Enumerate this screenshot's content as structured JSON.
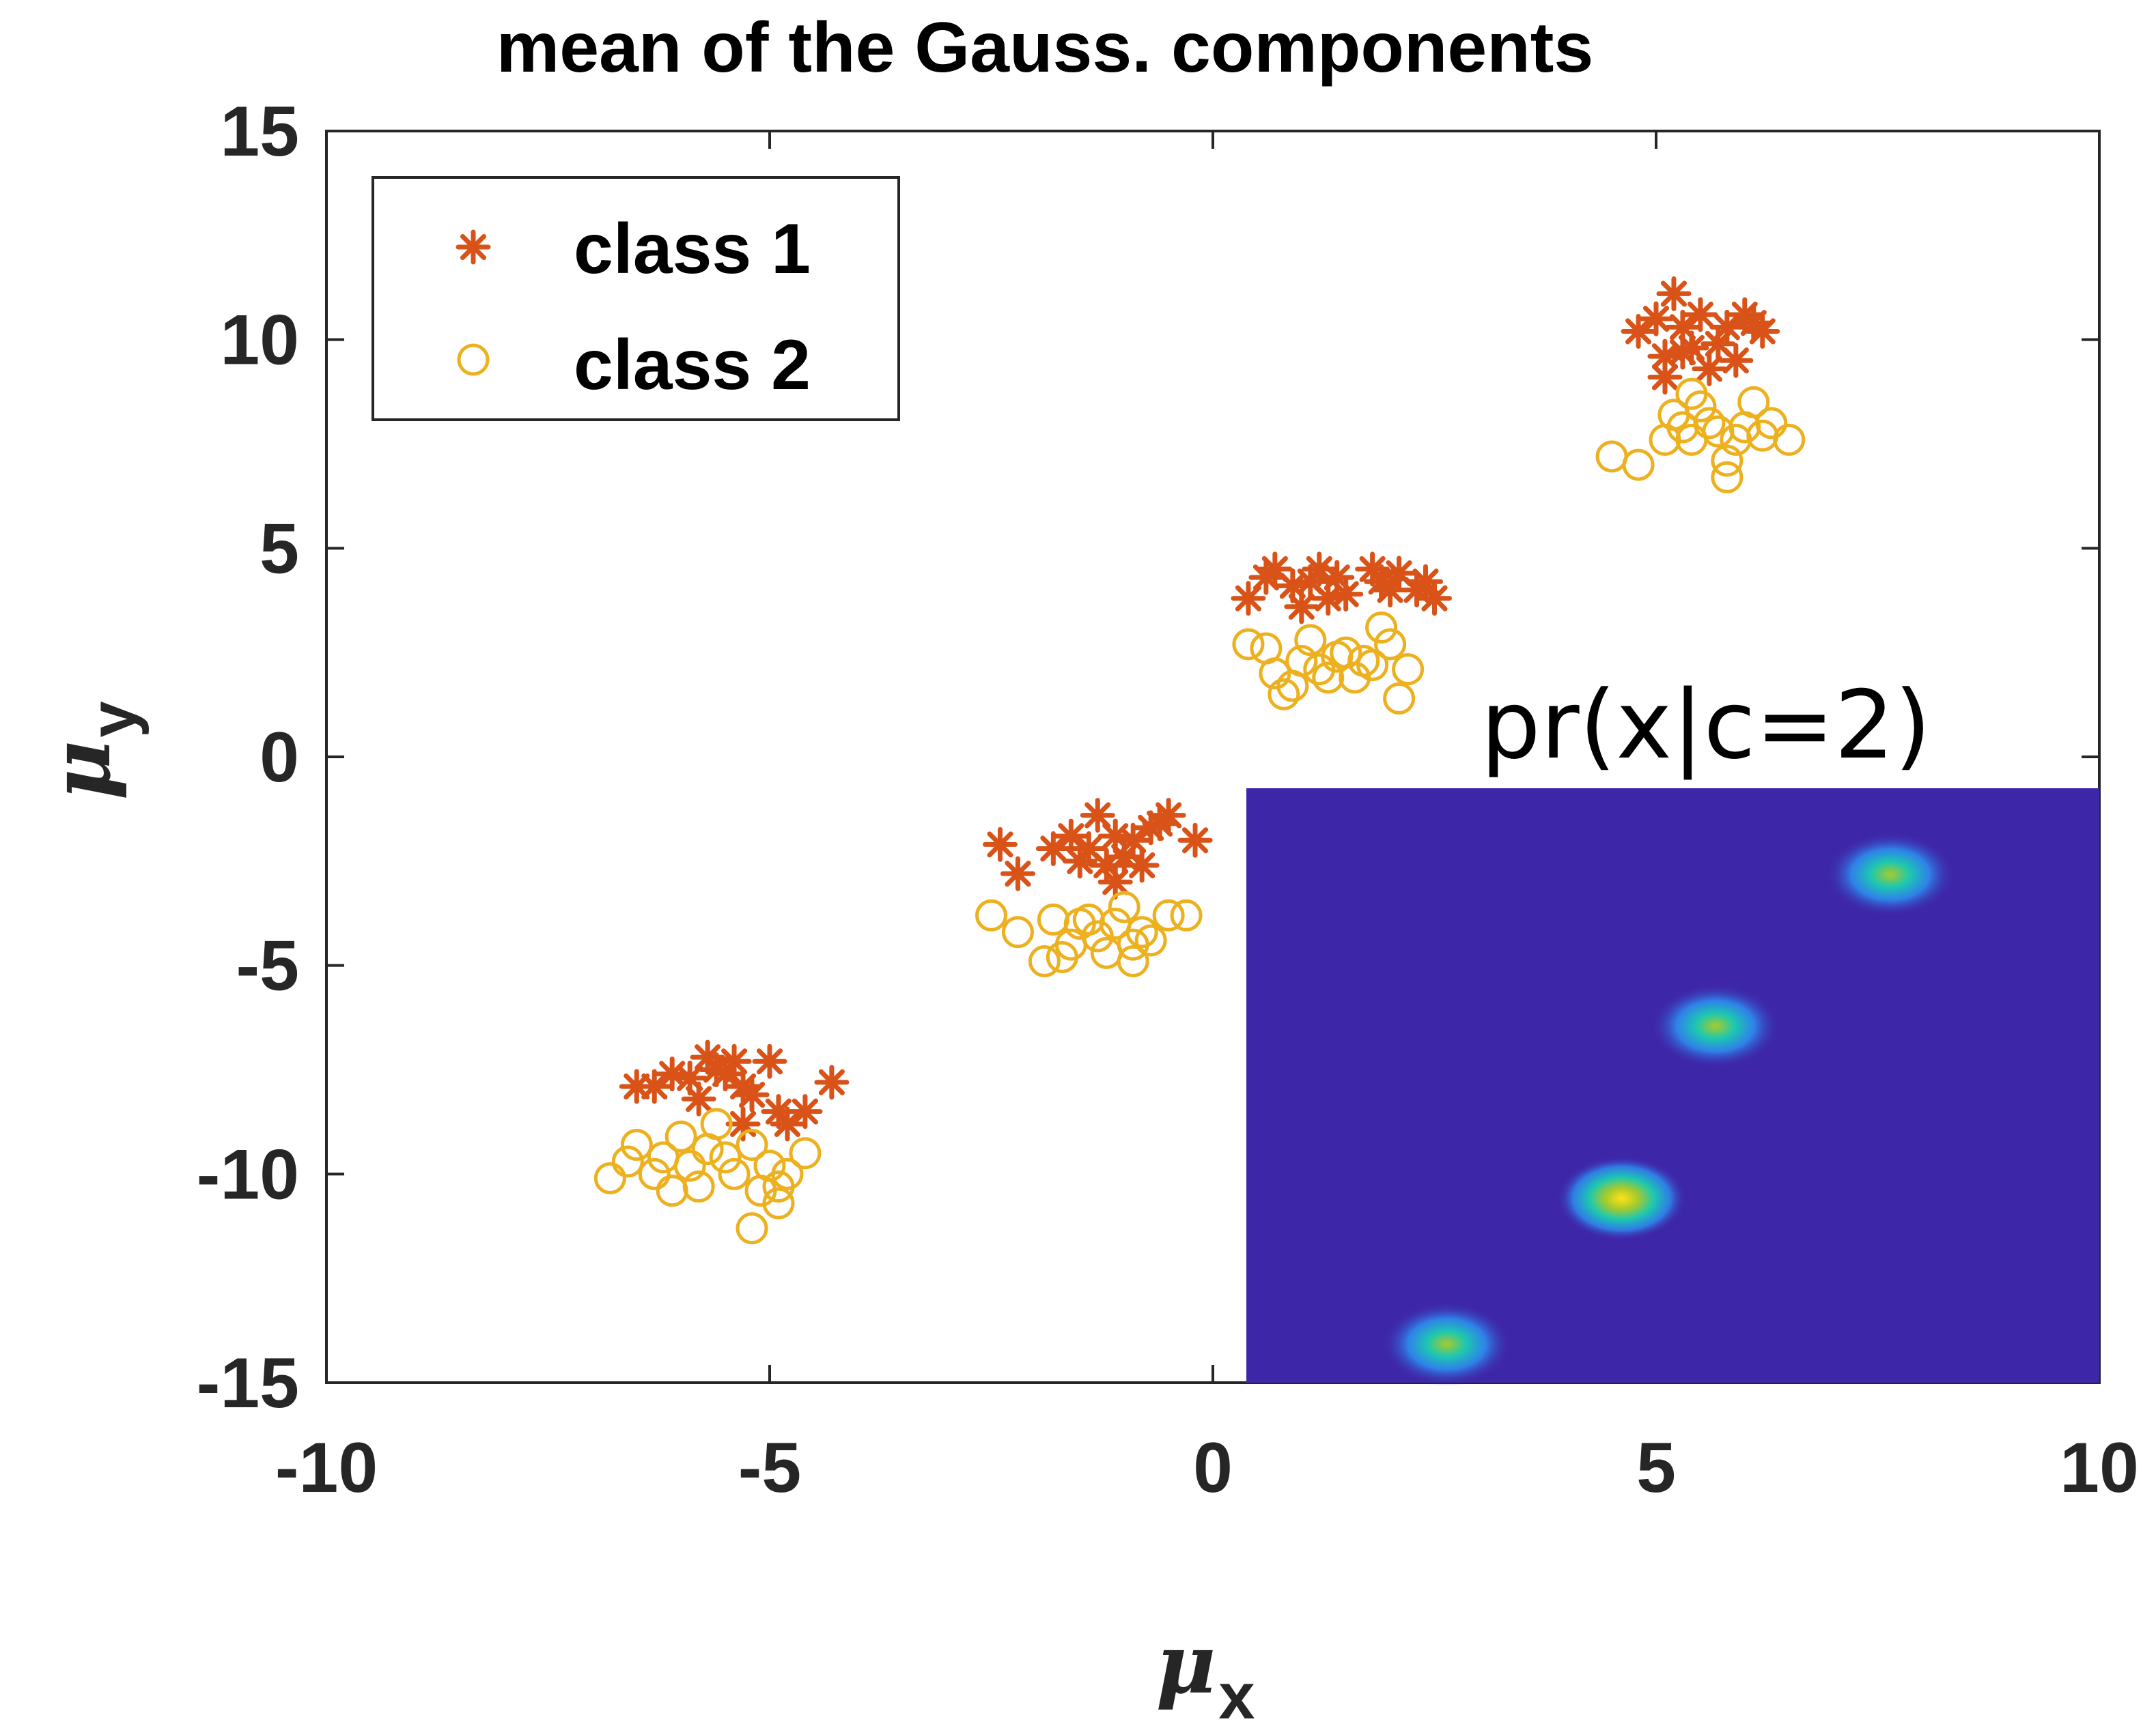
{
  "chart_data": [
    {
      "type": "scatter",
      "title": "mean of the Gauss. components",
      "xlabel_symbol": "μ",
      "xlabel_sub": "x",
      "ylabel_symbol": "μ",
      "ylabel_sub": "y",
      "xlim": [
        -10,
        10
      ],
      "ylim": [
        -15,
        15
      ],
      "xticks": [
        -10,
        -5,
        0,
        5,
        10
      ],
      "xtick_labels": [
        "-10",
        "-5",
        "0",
        "5",
        "10"
      ],
      "yticks": [
        -15,
        -10,
        -5,
        0,
        5,
        10,
        15
      ],
      "ytick_labels": [
        "-15",
        "-10",
        "-5",
        "0",
        "5",
        "10",
        "15"
      ],
      "grid": false,
      "legend_position": "top-left",
      "series": [
        {
          "name": "class 1",
          "marker": "asterisk",
          "color": "#D95319",
          "points": [
            [
              -6.5,
              -7.9
            ],
            [
              -6.3,
              -7.9
            ],
            [
              -6.1,
              -7.6
            ],
            [
              -5.9,
              -7.7
            ],
            [
              -5.7,
              -7.2
            ],
            [
              -5.6,
              -7.5
            ],
            [
              -5.5,
              -7.6
            ],
            [
              -5.4,
              -7.3
            ],
            [
              -5.3,
              -7.9
            ],
            [
              -5.2,
              -8.1
            ],
            [
              -5.0,
              -7.3
            ],
            [
              -4.9,
              -8.5
            ],
            [
              -4.8,
              -8.8
            ],
            [
              -4.6,
              -8.5
            ],
            [
              -4.3,
              -7.8
            ],
            [
              -5.3,
              -8.8
            ],
            [
              -5.8,
              -8.2
            ],
            [
              -2.4,
              -2.1
            ],
            [
              -2.2,
              -2.8
            ],
            [
              -1.8,
              -2.2
            ],
            [
              -1.6,
              -1.9
            ],
            [
              -1.5,
              -2.5
            ],
            [
              -1.4,
              -2.2
            ],
            [
              -1.3,
              -1.4
            ],
            [
              -1.2,
              -2.6
            ],
            [
              -1.1,
              -1.9
            ],
            [
              -1.0,
              -2.4
            ],
            [
              -0.9,
              -2.0
            ],
            [
              -0.8,
              -2.6
            ],
            [
              -0.7,
              -1.7
            ],
            [
              -0.6,
              -1.6
            ],
            [
              -0.5,
              -1.4
            ],
            [
              -0.2,
              -2.0
            ],
            [
              -1.1,
              -3.0
            ],
            [
              0.4,
              3.8
            ],
            [
              0.6,
              4.3
            ],
            [
              0.7,
              4.5
            ],
            [
              0.9,
              4.1
            ],
            [
              1.0,
              3.6
            ],
            [
              1.1,
              4.2
            ],
            [
              1.2,
              4.5
            ],
            [
              1.3,
              3.8
            ],
            [
              1.4,
              4.3
            ],
            [
              1.5,
              3.9
            ],
            [
              1.8,
              4.5
            ],
            [
              1.9,
              4.2
            ],
            [
              2.0,
              4.0
            ],
            [
              2.1,
              4.4
            ],
            [
              2.3,
              4.0
            ],
            [
              2.5,
              3.8
            ],
            [
              2.4,
              4.2
            ],
            [
              4.8,
              10.2
            ],
            [
              5.0,
              10.5
            ],
            [
              5.1,
              9.6
            ],
            [
              5.1,
              9.1
            ],
            [
              5.2,
              11.1
            ],
            [
              5.3,
              10.3
            ],
            [
              5.4,
              9.8
            ],
            [
              5.5,
              10.6
            ],
            [
              5.7,
              9.9
            ],
            [
              5.8,
              10.3
            ],
            [
              5.9,
              9.5
            ],
            [
              6.0,
              10.6
            ],
            [
              6.1,
              10.4
            ],
            [
              6.2,
              10.2
            ],
            [
              5.6,
              9.3
            ],
            [
              5.3,
              9.7
            ]
          ]
        },
        {
          "name": "class 2",
          "marker": "circle",
          "color": "#EDB120",
          "points": [
            [
              -6.8,
              -10.1
            ],
            [
              -6.6,
              -9.7
            ],
            [
              -6.5,
              -9.3
            ],
            [
              -6.3,
              -10.0
            ],
            [
              -6.2,
              -9.6
            ],
            [
              -6.1,
              -10.4
            ],
            [
              -6.0,
              -9.1
            ],
            [
              -5.9,
              -9.8
            ],
            [
              -5.8,
              -10.3
            ],
            [
              -5.7,
              -9.4
            ],
            [
              -5.6,
              -8.8
            ],
            [
              -5.5,
              -9.6
            ],
            [
              -5.4,
              -10.0
            ],
            [
              -5.2,
              -9.3
            ],
            [
              -5.1,
              -10.4
            ],
            [
              -5.0,
              -9.8
            ],
            [
              -4.9,
              -10.3
            ],
            [
              -4.8,
              -10.0
            ],
            [
              -4.6,
              -9.5
            ],
            [
              -5.2,
              -11.3
            ],
            [
              -4.9,
              -10.7
            ],
            [
              -2.5,
              -3.8
            ],
            [
              -2.2,
              -4.2
            ],
            [
              -1.9,
              -4.9
            ],
            [
              -1.8,
              -3.9
            ],
            [
              -1.7,
              -4.8
            ],
            [
              -1.6,
              -4.5
            ],
            [
              -1.5,
              -4.0
            ],
            [
              -1.4,
              -3.9
            ],
            [
              -1.3,
              -4.3
            ],
            [
              -1.2,
              -4.7
            ],
            [
              -1.1,
              -4.0
            ],
            [
              -1.0,
              -3.6
            ],
            [
              -0.9,
              -4.5
            ],
            [
              -0.8,
              -4.2
            ],
            [
              -0.7,
              -4.4
            ],
            [
              -0.5,
              -3.8
            ],
            [
              -0.3,
              -3.8
            ],
            [
              -0.9,
              -4.9
            ],
            [
              0.4,
              2.7
            ],
            [
              0.6,
              2.6
            ],
            [
              0.7,
              2.0
            ],
            [
              0.8,
              1.5
            ],
            [
              0.9,
              1.7
            ],
            [
              1.0,
              2.3
            ],
            [
              1.1,
              2.8
            ],
            [
              1.2,
              2.1
            ],
            [
              1.3,
              1.9
            ],
            [
              1.4,
              2.4
            ],
            [
              1.5,
              2.5
            ],
            [
              1.6,
              1.9
            ],
            [
              1.7,
              2.3
            ],
            [
              1.8,
              2.2
            ],
            [
              1.9,
              3.1
            ],
            [
              2.0,
              2.7
            ],
            [
              2.2,
              2.1
            ],
            [
              2.1,
              1.4
            ],
            [
              4.5,
              7.2
            ],
            [
              4.8,
              7.0
            ],
            [
              5.1,
              7.6
            ],
            [
              5.2,
              8.2
            ],
            [
              5.3,
              7.9
            ],
            [
              5.4,
              7.6
            ],
            [
              5.5,
              8.4
            ],
            [
              5.6,
              8.0
            ],
            [
              5.7,
              7.8
            ],
            [
              5.8,
              7.1
            ],
            [
              5.9,
              7.6
            ],
            [
              6.0,
              7.9
            ],
            [
              6.1,
              8.5
            ],
            [
              6.2,
              7.7
            ],
            [
              6.3,
              8.0
            ],
            [
              6.5,
              7.6
            ],
            [
              5.8,
              6.7
            ],
            [
              5.4,
              8.7
            ]
          ]
        }
      ]
    },
    {
      "type": "heatmap",
      "title": "pr(x|c=2)",
      "colormap": [
        "#3E26A8",
        "#2D8CF0",
        "#1CC8B0",
        "#A8CA2A",
        "#FFE21B"
      ],
      "background_color": "#3E26A8",
      "peaks": [
        {
          "u": 0.235,
          "v": 0.935,
          "intensity": 0.55
        },
        {
          "u": 0.44,
          "v": 0.69,
          "intensity": 1.0
        },
        {
          "u": 0.55,
          "v": 0.4,
          "intensity": 0.62
        },
        {
          "u": 0.755,
          "v": 0.145,
          "intensity": 0.68
        }
      ]
    }
  ]
}
